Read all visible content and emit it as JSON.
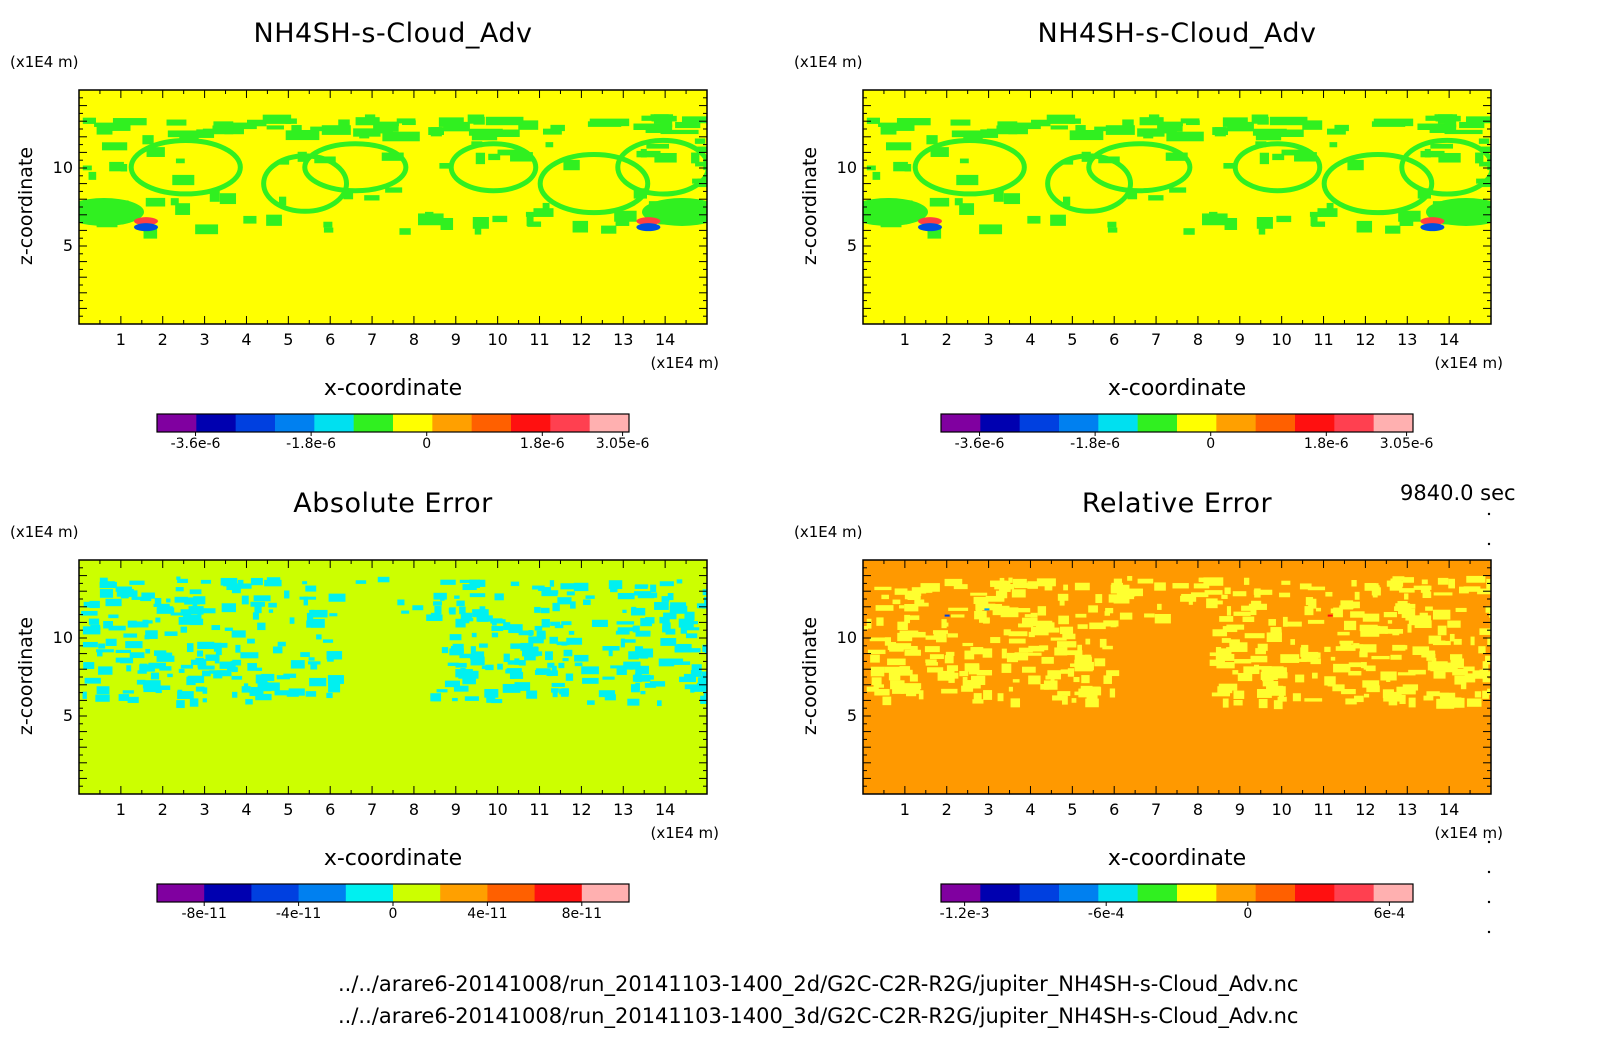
{
  "time_label": "9840.0 sec",
  "file_paths": [
    "../../arare6-20141008/run_20141103-1400_2d/G2C-C2R-R2G/jupiter_NH4SH-s-Cloud_Adv.nc",
    "../../arare6-20141008/run_20141103-1400_3d/G2C-C2R-R2G/jupiter_NH4SH-s-Cloud_Adv.nc"
  ],
  "chart_data": [
    {
      "type": "heatmap",
      "title": "NH4SH-s-Cloud_Adv",
      "xlabel": "x-coordinate",
      "ylabel": "z-coordinate",
      "x_unit": "(x1E4 m)",
      "z_unit": "(x1E4 m)",
      "xlim": [
        0,
        15
      ],
      "zlim": [
        0,
        15
      ],
      "x_ticks": [
        1,
        2,
        3,
        4,
        5,
        6,
        7,
        8,
        9,
        10,
        11,
        12,
        13,
        14
      ],
      "z_ticks": [
        5,
        10
      ],
      "background": "#ffff00",
      "pattern": "green",
      "colorbar": {
        "colors": [
          "#8000a0",
          "#0000b0",
          "#0040e0",
          "#0080f0",
          "#00e0f0",
          "#30f020",
          "#ffff00",
          "#ffa000",
          "#ff6000",
          "#ff1010",
          "#ff4050",
          "#ffb0b0"
        ],
        "labels": [
          "-3.6e-6",
          "-1.8e-6",
          "0",
          "1.8e-6",
          "3.05e-6"
        ],
        "label_values": [
          -3.6e-06,
          -1.8e-06,
          0,
          1.8e-06,
          3.05e-06
        ],
        "range": [
          -4.2e-06,
          3.15e-06
        ]
      }
    },
    {
      "type": "heatmap",
      "title": "NH4SH-s-Cloud_Adv",
      "xlabel": "x-coordinate",
      "ylabel": "z-coordinate",
      "x_unit": "(x1E4 m)",
      "z_unit": "(x1E4 m)",
      "xlim": [
        0,
        15
      ],
      "zlim": [
        0,
        15
      ],
      "x_ticks": [
        1,
        2,
        3,
        4,
        5,
        6,
        7,
        8,
        9,
        10,
        11,
        12,
        13,
        14
      ],
      "z_ticks": [
        5,
        10
      ],
      "background": "#ffff00",
      "pattern": "green",
      "colorbar": {
        "colors": [
          "#8000a0",
          "#0000b0",
          "#0040e0",
          "#0080f0",
          "#00e0f0",
          "#30f020",
          "#ffff00",
          "#ffa000",
          "#ff6000",
          "#ff1010",
          "#ff4050",
          "#ffb0b0"
        ],
        "labels": [
          "-3.6e-6",
          "-1.8e-6",
          "0",
          "1.8e-6",
          "3.05e-6"
        ],
        "label_values": [
          -3.6e-06,
          -1.8e-06,
          0,
          1.8e-06,
          3.05e-06
        ],
        "range": [
          -4.2e-06,
          3.15e-06
        ]
      }
    },
    {
      "type": "heatmap",
      "title": "Absolute Error",
      "xlabel": "x-coordinate",
      "ylabel": "z-coordinate",
      "x_unit": "(x1E4 m)",
      "z_unit": "(x1E4 m)",
      "xlim": [
        0,
        15
      ],
      "zlim": [
        0,
        15
      ],
      "x_ticks": [
        1,
        2,
        3,
        4,
        5,
        6,
        7,
        8,
        9,
        10,
        11,
        12,
        13,
        14
      ],
      "z_ticks": [
        5,
        10
      ],
      "background": "#ccff00",
      "pattern": "cyan",
      "colorbar": {
        "colors": [
          "#8000a0",
          "#0000b0",
          "#0040e0",
          "#0080f0",
          "#00f0f0",
          "#ccff00",
          "#ffa000",
          "#ff6000",
          "#ff1010",
          "#ffb0b0"
        ],
        "labels": [
          "-8e-11",
          "-4e-11",
          "0",
          "4e-11",
          "8e-11"
        ],
        "label_values": [
          -8e-11,
          -4e-11,
          0,
          4e-11,
          8e-11
        ],
        "range": [
          -1e-10,
          1e-10
        ]
      }
    },
    {
      "type": "heatmap",
      "title": "Relative Error",
      "xlabel": "x-coordinate",
      "ylabel": "z-coordinate",
      "x_unit": "(x1E4 m)",
      "z_unit": "(x1E4 m)",
      "xlim": [
        0,
        15
      ],
      "zlim": [
        0,
        15
      ],
      "x_ticks": [
        1,
        2,
        3,
        4,
        5,
        6,
        7,
        8,
        9,
        10,
        11,
        12,
        13,
        14
      ],
      "z_ticks": [
        5,
        10
      ],
      "background": "#ff9900",
      "pattern": "yellow",
      "colorbar": {
        "colors": [
          "#8000a0",
          "#0000b0",
          "#0040e0",
          "#0080f0",
          "#00e0f0",
          "#30f020",
          "#ffff00",
          "#ffa000",
          "#ff6000",
          "#ff1010",
          "#ff4050",
          "#ffb0b0"
        ],
        "labels": [
          "-1.2e-3",
          "-6e-4",
          "0",
          "6e-4"
        ],
        "label_values": [
          -0.0012,
          -0.0006,
          0,
          0.0006
        ],
        "range": [
          -0.0013,
          0.0007
        ]
      }
    }
  ]
}
